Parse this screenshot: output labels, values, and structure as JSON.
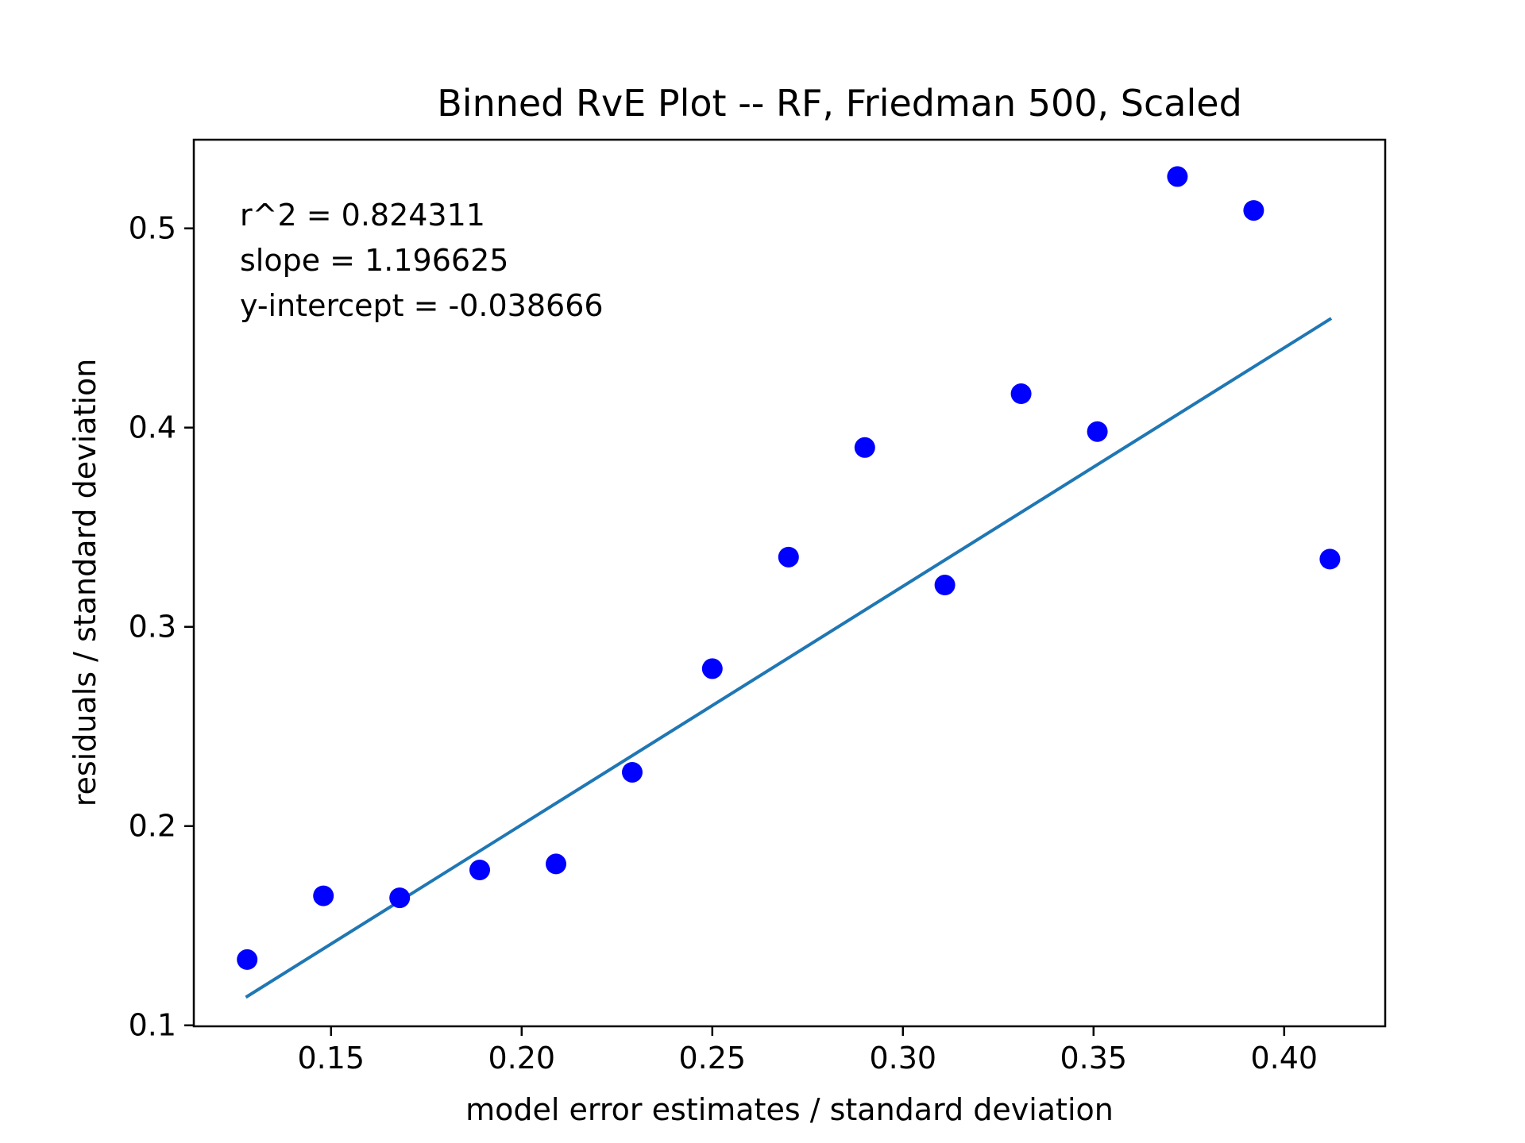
{
  "chart_data": {
    "type": "scatter",
    "title": "Binned RvE Plot -- RF, Friedman 500, Scaled",
    "xlabel": "model error estimates / standard deviation",
    "ylabel": "residuals / standard deviation",
    "xlim": [
      0.114,
      0.4265
    ],
    "ylim": [
      0.0995,
      0.5445
    ],
    "xticks": [
      0.15,
      0.2,
      0.25,
      0.3,
      0.35,
      0.4
    ],
    "xtick_labels": [
      "0.15",
      "0.20",
      "0.25",
      "0.30",
      "0.35",
      "0.40"
    ],
    "yticks": [
      0.1,
      0.2,
      0.3,
      0.4,
      0.5
    ],
    "ytick_labels": [
      "0.1",
      "0.2",
      "0.3",
      "0.4",
      "0.5"
    ],
    "grid": false,
    "series": [
      {
        "kind": "points",
        "color": "#0000ff",
        "x": [
          0.128,
          0.148,
          0.168,
          0.189,
          0.209,
          0.229,
          0.25,
          0.27,
          0.29,
          0.311,
          0.331,
          0.351,
          0.372,
          0.392,
          0.412
        ],
        "y": [
          0.133,
          0.165,
          0.164,
          0.178,
          0.181,
          0.227,
          0.279,
          0.335,
          0.39,
          0.321,
          0.417,
          0.398,
          0.526,
          0.509,
          0.334
        ]
      },
      {
        "kind": "fit-line",
        "color": "#1f77b4",
        "x": [
          0.128,
          0.412
        ],
        "y": [
          0.1145,
          0.4544
        ]
      }
    ],
    "annotations": [
      "r^2 = 0.824311",
      "slope = 1.196625",
      "y-intercept = -0.038666"
    ]
  }
}
